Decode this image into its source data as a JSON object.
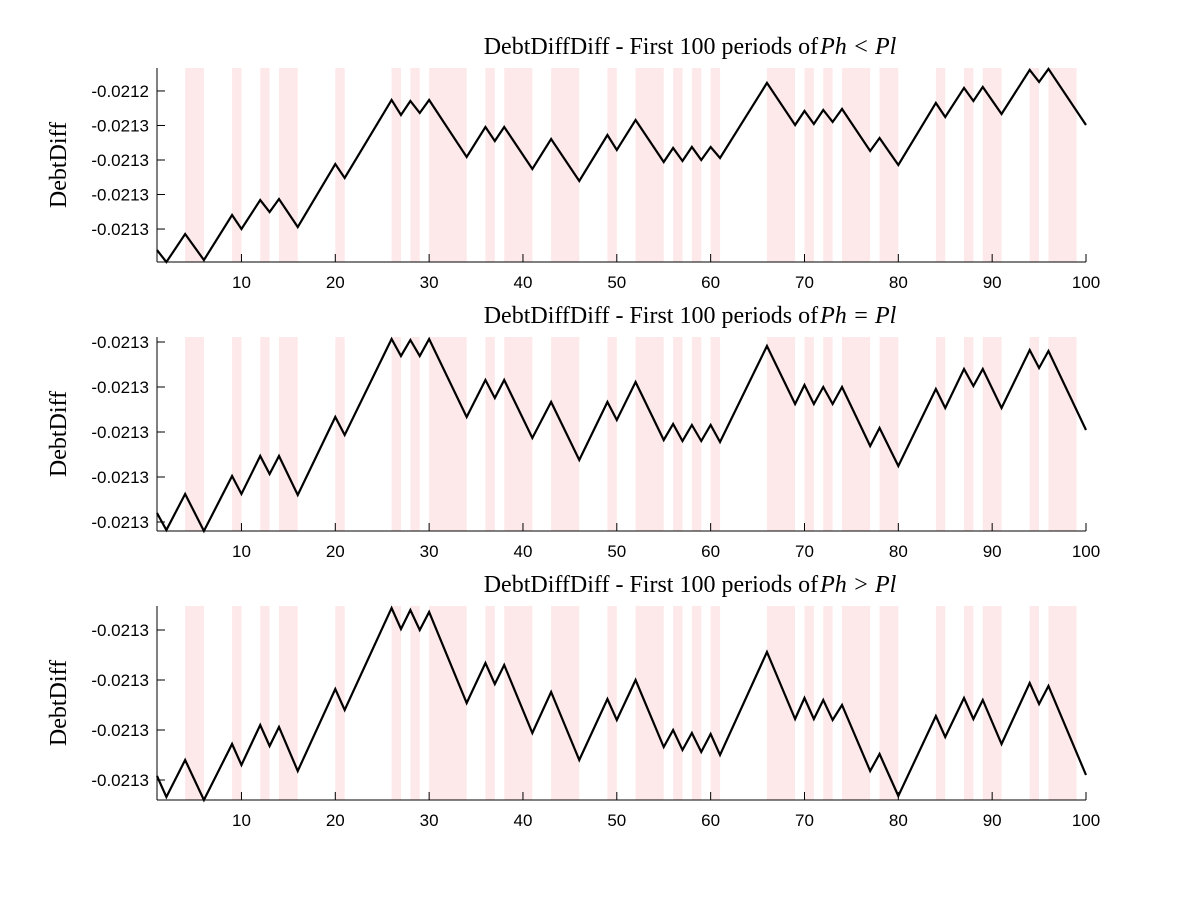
{
  "chart_data": [
    {
      "type": "line",
      "title": "DebtDiffDiff - First 100 periods of",
      "title_condition": "Ph < Pl",
      "ylabel": "DebtDiff",
      "xlim": [
        1,
        100
      ],
      "xticks": [
        10,
        20,
        30,
        40,
        50,
        60,
        70,
        80,
        90,
        100
      ],
      "ylim": [
        -0.0213391,
        -0.0212267
      ],
      "yticks": [
        {
          "value": -0.02124,
          "label": "-0.0212"
        },
        {
          "value": -0.02126,
          "label": "-0.0213"
        },
        {
          "value": -0.02128,
          "label": "-0.0213"
        },
        {
          "value": -0.0213,
          "label": "-0.0213"
        },
        {
          "value": -0.02132,
          "label": "-0.0213"
        }
      ],
      "grid": false,
      "shade_color": "#fde9e9",
      "shaded_regions": [
        [
          4,
          6
        ],
        [
          9,
          10
        ],
        [
          12,
          13
        ],
        [
          14,
          16
        ],
        [
          20,
          21
        ],
        [
          26,
          27
        ],
        [
          28,
          29
        ],
        [
          30,
          34
        ],
        [
          36,
          37
        ],
        [
          38,
          41
        ],
        [
          43,
          46
        ],
        [
          49,
          50
        ],
        [
          52,
          55
        ],
        [
          56,
          57
        ],
        [
          58,
          59
        ],
        [
          60,
          61
        ],
        [
          66,
          69
        ],
        [
          70,
          71
        ],
        [
          72,
          73
        ],
        [
          74,
          77
        ],
        [
          78,
          80
        ],
        [
          84,
          85
        ],
        [
          87,
          88
        ],
        [
          89,
          91
        ],
        [
          94,
          95
        ],
        [
          96,
          99
        ]
      ],
      "series": [
        {
          "color": "#000000",
          "x": [
            1,
            2,
            4,
            6,
            9,
            10,
            12,
            13,
            14,
            16,
            20,
            21,
            26,
            27,
            28,
            29,
            30,
            34,
            36,
            37,
            38,
            41,
            43,
            46,
            49,
            50,
            52,
            55,
            56,
            57,
            58,
            59,
            60,
            61,
            66,
            69,
            70,
            71,
            72,
            73,
            74,
            77,
            78,
            80,
            84,
            85,
            87,
            88,
            89,
            91,
            94,
            95,
            96,
            100
          ],
          "values": [
            -0.02133217,
            -0.02133913,
            -0.0213229,
            -0.02133797,
            -0.02131188,
            -0.02132,
            -0.02130319,
            -0.02131014,
            -0.02130261,
            -0.02131884,
            -0.02128232,
            -0.02129043,
            -0.02124522,
            -0.02125391,
            -0.0212458,
            -0.02125275,
            -0.02124522,
            -0.02127826,
            -0.02126087,
            -0.02126899,
            -0.02126087,
            -0.02128522,
            -0.02126783,
            -0.02129217,
            -0.02126551,
            -0.0212742,
            -0.02125681,
            -0.02128116,
            -0.02127304,
            -0.02128058,
            -0.02127246,
            -0.02128,
            -0.02127246,
            -0.02127884,
            -0.02123536,
            -0.02125971,
            -0.02125159,
            -0.02125913,
            -0.02125101,
            -0.02125797,
            -0.02125043,
            -0.02127478,
            -0.02126725,
            -0.0212829,
            -0.02124696,
            -0.02125507,
            -0.02123826,
            -0.0212458,
            -0.02123768,
            -0.02125333,
            -0.02122783,
            -0.02123478,
            -0.02122725,
            -0.02125971
          ]
        }
      ]
    },
    {
      "type": "line",
      "title": "DebtDiffDiff - First 100 periods of",
      "title_condition": "Ph = Pl",
      "ylabel": "DebtDiff",
      "xlim": [
        1,
        100
      ],
      "xticks": [
        10,
        20,
        30,
        40,
        50,
        60,
        70,
        80,
        90,
        100
      ],
      "ylim": [
        -0.021344,
        -0.02125778
      ],
      "yticks": [
        {
          "value": -0.02126,
          "label": "-0.0213"
        },
        {
          "value": -0.02128,
          "label": "-0.0213"
        },
        {
          "value": -0.0213,
          "label": "-0.0213"
        },
        {
          "value": -0.02132,
          "label": "-0.0213"
        },
        {
          "value": -0.02134,
          "label": "-0.0213"
        }
      ],
      "grid": false,
      "shade_color": "#fde9e9",
      "shaded_regions": [
        [
          4,
          6
        ],
        [
          9,
          10
        ],
        [
          12,
          13
        ],
        [
          14,
          16
        ],
        [
          20,
          21
        ],
        [
          26,
          27
        ],
        [
          28,
          29
        ],
        [
          30,
          34
        ],
        [
          36,
          37
        ],
        [
          38,
          41
        ],
        [
          43,
          46
        ],
        [
          49,
          50
        ],
        [
          52,
          55
        ],
        [
          56,
          57
        ],
        [
          58,
          59
        ],
        [
          60,
          61
        ],
        [
          66,
          69
        ],
        [
          70,
          71
        ],
        [
          72,
          73
        ],
        [
          74,
          77
        ],
        [
          78,
          80
        ],
        [
          84,
          85
        ],
        [
          87,
          88
        ],
        [
          89,
          91
        ],
        [
          94,
          95
        ],
        [
          96,
          99
        ]
      ],
      "series": [
        {
          "color": "#000000",
          "x": [
            1,
            2,
            4,
            6,
            9,
            10,
            12,
            13,
            14,
            16,
            20,
            21,
            26,
            27,
            28,
            29,
            30,
            34,
            36,
            37,
            38,
            41,
            43,
            46,
            49,
            50,
            52,
            55,
            56,
            57,
            58,
            59,
            60,
            61,
            66,
            69,
            70,
            71,
            72,
            73,
            74,
            77,
            78,
            80,
            84,
            85,
            87,
            88,
            89,
            91,
            94,
            95,
            96,
            100
          ],
          "values": [
            -0.021336,
            -0.02134355,
            -0.02132755,
            -0.021344,
            -0.02131955,
            -0.02132755,
            -0.02131066,
            -0.02131866,
            -0.02131066,
            -0.021328,
            -0.02129333,
            -0.02130133,
            -0.02125867,
            -0.02126622,
            -0.02125911,
            -0.02126622,
            -0.02125867,
            -0.02129333,
            -0.02127689,
            -0.02128489,
            -0.02127689,
            -0.02130266,
            -0.02128666,
            -0.02131244,
            -0.02128666,
            -0.02129466,
            -0.02127778,
            -0.02130355,
            -0.02129644,
            -0.021304,
            -0.02129689,
            -0.021304,
            -0.02129689,
            -0.02130444,
            -0.02126178,
            -0.02128755,
            -0.02127911,
            -0.02128755,
            -0.02128,
            -0.02128755,
            -0.02128,
            -0.02130622,
            -0.02129822,
            -0.02131511,
            -0.02128089,
            -0.02128933,
            -0.021272,
            -0.02127955,
            -0.021272,
            -0.02128933,
            -0.02126356,
            -0.02127155,
            -0.021264,
            -0.02129911
          ]
        }
      ]
    },
    {
      "type": "line",
      "title": "DebtDiffDiff - First 100 periods of",
      "title_condition": "Ph > Pl",
      "ylabel": "DebtDiff",
      "xlim": [
        1,
        100
      ],
      "xticks": [
        10,
        20,
        30,
        40,
        50,
        60,
        70,
        80,
        90,
        100
      ],
      "ylim": [
        -0.021328,
        -0.0212504
      ],
      "yticks": [
        {
          "value": -0.02126,
          "label": "-0.0213"
        },
        {
          "value": -0.02128,
          "label": "-0.0213"
        },
        {
          "value": -0.0213,
          "label": "-0.0213"
        },
        {
          "value": -0.02132,
          "label": "-0.0213"
        }
      ],
      "grid": false,
      "shade_color": "#fde9e9",
      "shaded_regions": [
        [
          4,
          6
        ],
        [
          9,
          10
        ],
        [
          12,
          13
        ],
        [
          14,
          16
        ],
        [
          20,
          21
        ],
        [
          26,
          27
        ],
        [
          28,
          29
        ],
        [
          30,
          34
        ],
        [
          36,
          37
        ],
        [
          38,
          41
        ],
        [
          43,
          46
        ],
        [
          49,
          50
        ],
        [
          52,
          55
        ],
        [
          56,
          57
        ],
        [
          58,
          59
        ],
        [
          60,
          61
        ],
        [
          66,
          69
        ],
        [
          70,
          71
        ],
        [
          72,
          73
        ],
        [
          74,
          77
        ],
        [
          78,
          80
        ],
        [
          84,
          85
        ],
        [
          87,
          88
        ],
        [
          89,
          91
        ],
        [
          94,
          95
        ],
        [
          96,
          99
        ]
      ],
      "series": [
        {
          "color": "#000000",
          "x": [
            1,
            2,
            4,
            6,
            9,
            10,
            12,
            13,
            14,
            16,
            20,
            21,
            26,
            27,
            28,
            29,
            30,
            34,
            36,
            37,
            38,
            41,
            43,
            46,
            49,
            50,
            52,
            55,
            56,
            57,
            58,
            59,
            60,
            61,
            66,
            69,
            70,
            71,
            72,
            73,
            74,
            77,
            78,
            80,
            84,
            85,
            87,
            88,
            89,
            91,
            94,
            95,
            96,
            100
          ],
          "values": [
            -0.0213184,
            -0.0213268,
            -0.021312,
            -0.021328,
            -0.0213056,
            -0.021314,
            -0.021298,
            -0.0213064,
            -0.0212988,
            -0.0213164,
            -0.0212836,
            -0.021292,
            -0.0212512,
            -0.0212596,
            -0.021252,
            -0.02126,
            -0.0212528,
            -0.0212892,
            -0.0212732,
            -0.0212816,
            -0.021274,
            -0.0213012,
            -0.0212848,
            -0.021312,
            -0.0212876,
            -0.021296,
            -0.02128,
            -0.0213068,
            -0.0213,
            -0.021308,
            -0.0213012,
            -0.0213088,
            -0.0213016,
            -0.02131,
            -0.0212688,
            -0.0212956,
            -0.0212872,
            -0.0212956,
            -0.021288,
            -0.021296,
            -0.02129,
            -0.0213164,
            -0.0213096,
            -0.0213264,
            -0.0212944,
            -0.0213028,
            -0.0212872,
            -0.0212956,
            -0.021288,
            -0.0213056,
            -0.0212812,
            -0.0212896,
            -0.0212824,
            -0.021318
          ]
        }
      ]
    }
  ]
}
